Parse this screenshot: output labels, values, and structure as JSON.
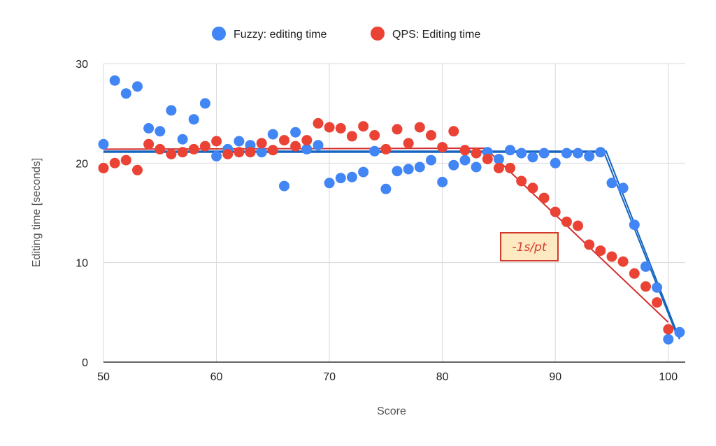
{
  "chart_data": {
    "type": "scatter",
    "xlabel": "Score",
    "ylabel": "Editing time [seconds]",
    "xlim": [
      50,
      101.5
    ],
    "ylim": [
      0,
      30
    ],
    "x_ticks": [
      50,
      60,
      70,
      80,
      90,
      100
    ],
    "y_ticks": [
      0,
      10,
      20,
      30
    ],
    "x_tick_labels": [
      "50",
      "60",
      "70",
      "80",
      "90",
      "100"
    ],
    "y_tick_labels": [
      "0",
      "10",
      "20",
      "30"
    ],
    "grid": true,
    "legend_position": "top-center",
    "series": [
      {
        "name": "Fuzzy: editing time",
        "color": "#4285f4",
        "points": [
          [
            50,
            21.9
          ],
          [
            51,
            28.3
          ],
          [
            52,
            27.0
          ],
          [
            53,
            27.7
          ],
          [
            54,
            23.5
          ],
          [
            55,
            23.2
          ],
          [
            56,
            25.3
          ],
          [
            57,
            22.4
          ],
          [
            58,
            24.4
          ],
          [
            59,
            26.0
          ],
          [
            60,
            20.7
          ],
          [
            61,
            21.4
          ],
          [
            62,
            22.2
          ],
          [
            63,
            21.8
          ],
          [
            64,
            21.1
          ],
          [
            65,
            22.9
          ],
          [
            66,
            17.7
          ],
          [
            67,
            23.1
          ],
          [
            68,
            21.4
          ],
          [
            69,
            21.8
          ],
          [
            70,
            18.0
          ],
          [
            71,
            18.5
          ],
          [
            72,
            18.6
          ],
          [
            73,
            19.1
          ],
          [
            74,
            21.2
          ],
          [
            75,
            17.4
          ],
          [
            76,
            19.2
          ],
          [
            77,
            19.4
          ],
          [
            78,
            19.6
          ],
          [
            79,
            20.3
          ],
          [
            80,
            18.1
          ],
          [
            81,
            19.8
          ],
          [
            82,
            20.3
          ],
          [
            83,
            19.6
          ],
          [
            84,
            21.1
          ],
          [
            85,
            20.4
          ],
          [
            86,
            21.3
          ],
          [
            87,
            21.0
          ],
          [
            88,
            20.6
          ],
          [
            89,
            21.0
          ],
          [
            90,
            20.0
          ],
          [
            91,
            21.0
          ],
          [
            92,
            21.0
          ],
          [
            93,
            20.7
          ],
          [
            94,
            21.1
          ],
          [
            95,
            18.0
          ],
          [
            96,
            17.5
          ],
          [
            97,
            13.8
          ],
          [
            98,
            9.6
          ],
          [
            99,
            7.5
          ],
          [
            100,
            2.3
          ],
          [
            101,
            3.0
          ]
        ]
      },
      {
        "name": "QPS: Editing time",
        "color": "#ea4335",
        "points": [
          [
            50,
            19.5
          ],
          [
            51,
            20.0
          ],
          [
            52,
            20.3
          ],
          [
            53,
            19.3
          ],
          [
            54,
            21.9
          ],
          [
            55,
            21.4
          ],
          [
            56,
            20.9
          ],
          [
            57,
            21.1
          ],
          [
            58,
            21.4
          ],
          [
            59,
            21.7
          ],
          [
            60,
            22.2
          ],
          [
            61,
            20.9
          ],
          [
            62,
            21.1
          ],
          [
            63,
            21.1
          ],
          [
            64,
            22.0
          ],
          [
            65,
            21.3
          ],
          [
            66,
            22.3
          ],
          [
            67,
            21.7
          ],
          [
            68,
            22.3
          ],
          [
            69,
            24.0
          ],
          [
            70,
            23.6
          ],
          [
            71,
            23.5
          ],
          [
            72,
            22.7
          ],
          [
            73,
            23.7
          ],
          [
            74,
            22.8
          ],
          [
            75,
            21.4
          ],
          [
            76,
            23.4
          ],
          [
            77,
            22.0
          ],
          [
            78,
            23.6
          ],
          [
            79,
            22.8
          ],
          [
            80,
            21.6
          ],
          [
            81,
            23.2
          ],
          [
            82,
            21.3
          ],
          [
            83,
            21.0
          ],
          [
            84,
            20.4
          ],
          [
            85,
            19.5
          ],
          [
            86,
            19.5
          ],
          [
            87,
            18.2
          ],
          [
            88,
            17.5
          ],
          [
            89,
            16.5
          ],
          [
            90,
            15.1
          ],
          [
            91,
            14.1
          ],
          [
            92,
            13.7
          ],
          [
            93,
            11.8
          ],
          [
            94,
            11.2
          ],
          [
            95,
            10.6
          ],
          [
            96,
            10.1
          ],
          [
            97,
            8.9
          ],
          [
            98,
            7.6
          ],
          [
            99,
            6.0
          ],
          [
            100,
            3.3
          ]
        ]
      }
    ],
    "fit_lines": [
      {
        "color": "#1565c0",
        "points": [
          [
            50,
            21.2
          ],
          [
            94.5,
            21.2
          ],
          [
            101,
            2.3
          ]
        ]
      },
      {
        "color": "#1565c0",
        "points": [
          [
            50,
            21.1
          ],
          [
            94.3,
            21.1
          ],
          [
            100.8,
            2.6
          ]
        ]
      },
      {
        "color": "#d32f2f",
        "points": [
          [
            50,
            21.4
          ],
          [
            83.8,
            21.5
          ],
          [
            100,
            4.0
          ]
        ]
      }
    ],
    "annotation": {
      "text": "-1s/pt",
      "fill": "#fde9c2",
      "border": "#d23b2b"
    }
  }
}
